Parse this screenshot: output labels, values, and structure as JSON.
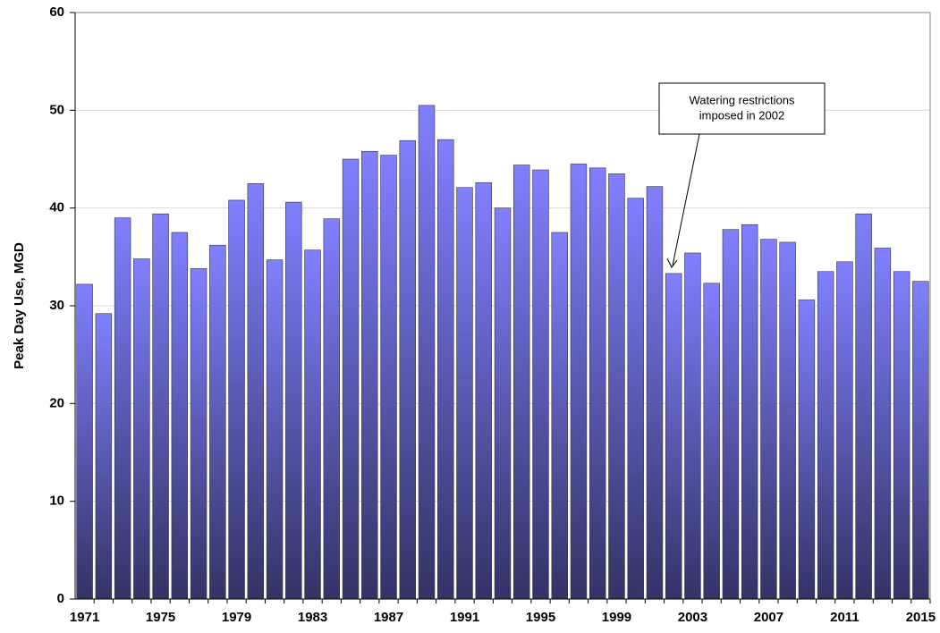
{
  "chart_data": {
    "type": "bar",
    "ylabel": "Peak Day Use, MGD",
    "categories": [
      "1971",
      null,
      null,
      null,
      "1975",
      null,
      null,
      null,
      "1979",
      null,
      null,
      null,
      "1983",
      null,
      null,
      null,
      "1987",
      null,
      null,
      null,
      "1991",
      null,
      null,
      null,
      "1995",
      null,
      null,
      null,
      "1999",
      null,
      null,
      null,
      "2003",
      null,
      null,
      null,
      "2007",
      null,
      null,
      null,
      "2011",
      null,
      null,
      null,
      "2015"
    ],
    "values": [
      32.2,
      29.2,
      39.0,
      34.8,
      39.4,
      37.5,
      33.8,
      36.2,
      40.8,
      42.5,
      34.7,
      40.6,
      35.7,
      38.9,
      45.0,
      45.8,
      45.4,
      46.9,
      50.5,
      47.0,
      42.1,
      42.6,
      40.0,
      44.4,
      43.9,
      37.5,
      44.5,
      44.1,
      43.5,
      41.0,
      42.2,
      33.3,
      35.4,
      32.3,
      37.8,
      38.3,
      36.8,
      36.5,
      30.6,
      33.5,
      34.5,
      39.4,
      35.9,
      33.5,
      32.5
    ],
    "color": "#8080ff",
    "ylim": [
      0,
      60
    ],
    "yticks": [
      0,
      10,
      20,
      30,
      40,
      50,
      60
    ],
    "grid": true,
    "annotation": [
      "Watering restrictions",
      "imposed in 2002"
    ]
  }
}
